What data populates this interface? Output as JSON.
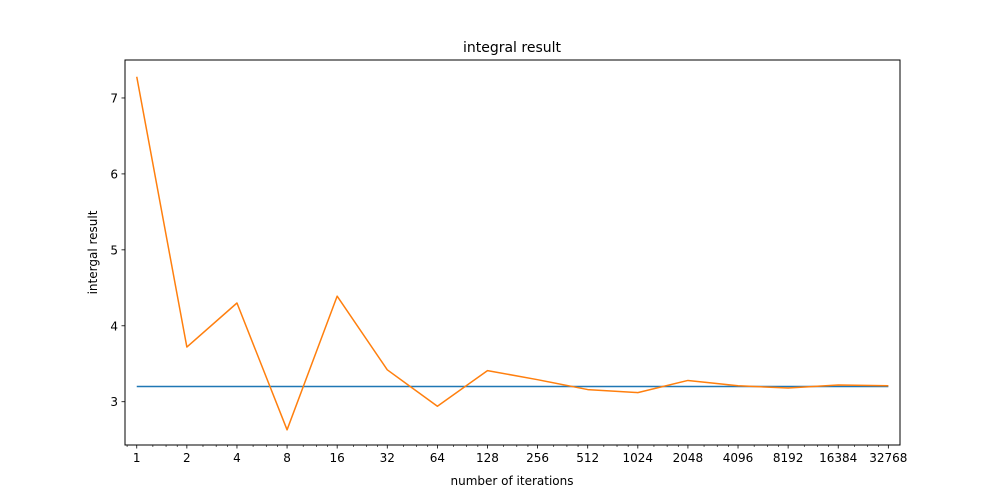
{
  "chart_data": {
    "type": "line",
    "title": "integral result",
    "xlabel": "number of iterations",
    "ylabel": "intergal result",
    "xscale": "log2",
    "xlim": [
      0.85,
      38500
    ],
    "ylim": [
      2.43,
      7.5
    ],
    "x_ticks": [
      "1",
      "2",
      "4",
      "8",
      "16",
      "32",
      "64",
      "128",
      "256",
      "512",
      "1024",
      "2048",
      "4096",
      "8192",
      "16384",
      "32768"
    ],
    "y_ticks": [
      "3",
      "4",
      "5",
      "6",
      "7"
    ],
    "grid": false,
    "series": [
      {
        "color": "#1f77b4",
        "x": [
          1,
          2,
          4,
          8,
          16,
          32,
          64,
          128,
          256,
          512,
          1024,
          2048,
          4096,
          8192,
          16384,
          32768
        ],
        "y": [
          3.2,
          3.2,
          3.2,
          3.2,
          3.2,
          3.2,
          3.2,
          3.2,
          3.2,
          3.2,
          3.2,
          3.2,
          3.2,
          3.2,
          3.2,
          3.2
        ]
      },
      {
        "color": "#ff7f0e",
        "x": [
          1,
          2,
          4,
          8,
          16,
          32,
          64,
          128,
          256,
          512,
          1024,
          2048,
          4096,
          8192,
          16384,
          32768
        ],
        "y": [
          7.28,
          3.72,
          4.3,
          2.63,
          4.39,
          3.42,
          2.94,
          3.41,
          3.29,
          3.16,
          3.12,
          3.28,
          3.21,
          3.18,
          3.22,
          3.21
        ]
      }
    ]
  }
}
